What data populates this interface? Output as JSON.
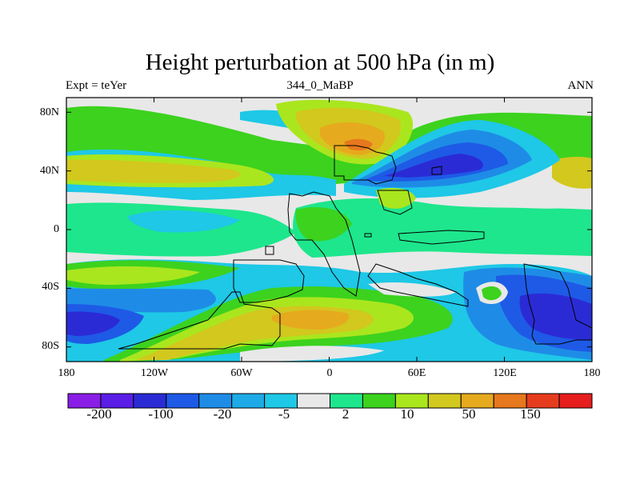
{
  "figure": {
    "title": "Height perturbation at 500 hPa (in m)",
    "left_string": "Expt = teYer",
    "center_string": "344_0_MaBP",
    "right_string": "ANN"
  },
  "axes": {
    "y_ticks": [
      "80N",
      "40N",
      "0",
      "40S",
      "80S"
    ],
    "x_ticks": [
      "180",
      "120W",
      "60W",
      "0",
      "60E",
      "120E",
      "180"
    ],
    "lon_range": [
      -180,
      180
    ],
    "lat_range": [
      -90,
      90
    ]
  },
  "colorbar": {
    "colors": [
      "#8a1ee6",
      "#5a1ee6",
      "#2b2bd6",
      "#1e5ae6",
      "#1e8ce6",
      "#1eaae6",
      "#1ec8e6",
      "#e8e8e8",
      "#1ee68c",
      "#3cd21e",
      "#aae61e",
      "#d2c81e",
      "#e6aa1e",
      "#e6781e",
      "#e63c1e",
      "#e61e1e"
    ],
    "labels": [
      {
        "text": "-200",
        "boundary": 1
      },
      {
        "text": "-100",
        "boundary": 3
      },
      {
        "text": "-20",
        "boundary": 5
      },
      {
        "text": "-5",
        "boundary": 7
      },
      {
        "text": "2",
        "boundary": 9
      },
      {
        "text": "10",
        "boundary": 11
      },
      {
        "text": "50",
        "boundary": 13
      },
      {
        "text": "150",
        "boundary": 15
      }
    ]
  }
}
